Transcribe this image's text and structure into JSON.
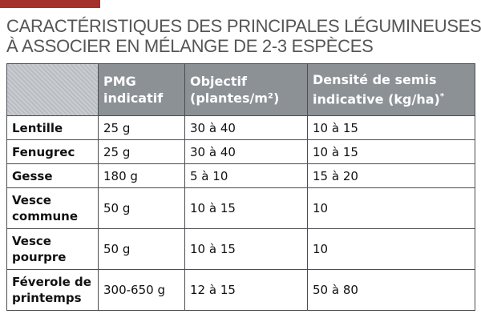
{
  "header": {
    "title_lines": [
      "CARACTÉRISTIQUES DES PRINCIPALES LÉGUMINEUSES",
      "À ASSOCIER EN MÉLANGE DE 2-3 ESPÈCES"
    ]
  },
  "table": {
    "columns": [
      [
        "PMG",
        "indicatif"
      ],
      [
        "Objectif",
        "(plantes/m²)"
      ],
      [
        "Densité de semis",
        "indicative (kg/ha)"
      ]
    ],
    "note_mark": "*",
    "rows": [
      [
        [
          "Lentille"
        ],
        "25 g",
        "30 à 40",
        "10 à 15"
      ],
      [
        [
          "Fenugrec"
        ],
        "25 g",
        "30 à 40",
        "10 à 15"
      ],
      [
        [
          "Gesse"
        ],
        "180 g",
        "5 à 10",
        "15 à 20"
      ],
      [
        [
          "Vesce",
          "commune"
        ],
        "50 g",
        "10 à 15",
        "10"
      ],
      [
        [
          "Vesce",
          "pourpre"
        ],
        "50 g",
        "10 à 15",
        "10"
      ],
      [
        [
          "Féverole de",
          "printemps"
        ],
        "300-650 g",
        "12 à 15",
        "50 à 80"
      ]
    ]
  }
}
